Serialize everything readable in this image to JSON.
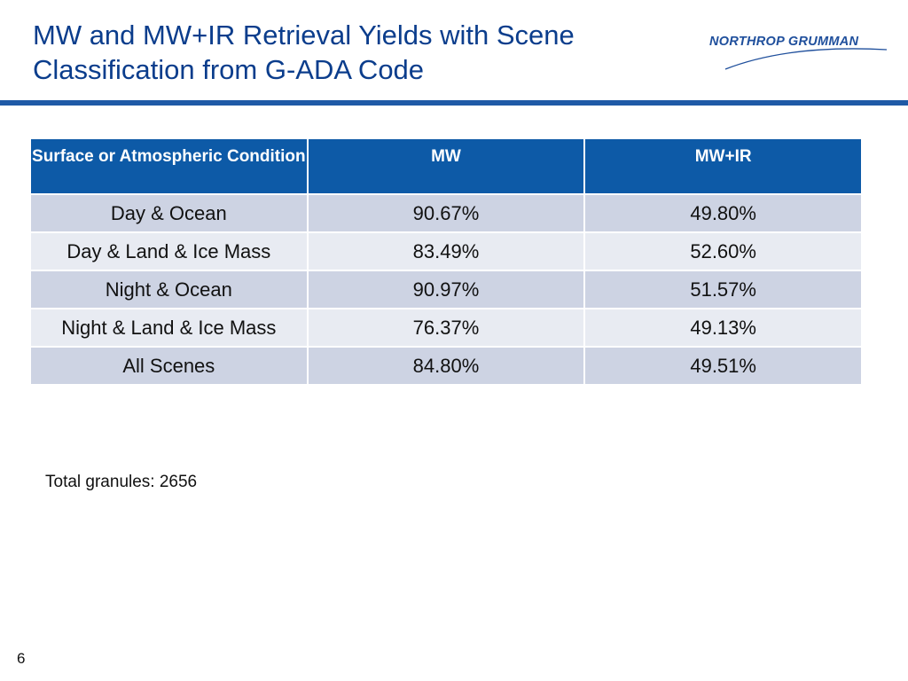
{
  "slide": {
    "title": "MW and MW+IR Retrieval Yields with Scene Classification from G-ADA Code",
    "logo_text": "NORTHROP GRUMMAN",
    "note": "Total granules: 2656",
    "page_number": "6"
  },
  "table": {
    "headers": [
      "Surface or Atmospheric Condition",
      "MW",
      "MW+IR"
    ],
    "rows": [
      [
        "Day & Ocean",
        "90.67%",
        "49.80%"
      ],
      [
        "Day & Land & Ice Mass",
        "83.49%",
        "52.60%"
      ],
      [
        "Night & Ocean",
        "90.97%",
        "51.57%"
      ],
      [
        "Night & Land & Ice Mass",
        "76.37%",
        "49.13%"
      ],
      [
        "All Scenes",
        "84.80%",
        "49.51%"
      ]
    ]
  },
  "colors": {
    "title": "#0b3d8c",
    "rule": "#1f5aa6",
    "header_bg": "#0d5aa7",
    "row_odd": "#cdd3e3",
    "row_even": "#e8ebf2",
    "logo": "#1f4f9c"
  }
}
